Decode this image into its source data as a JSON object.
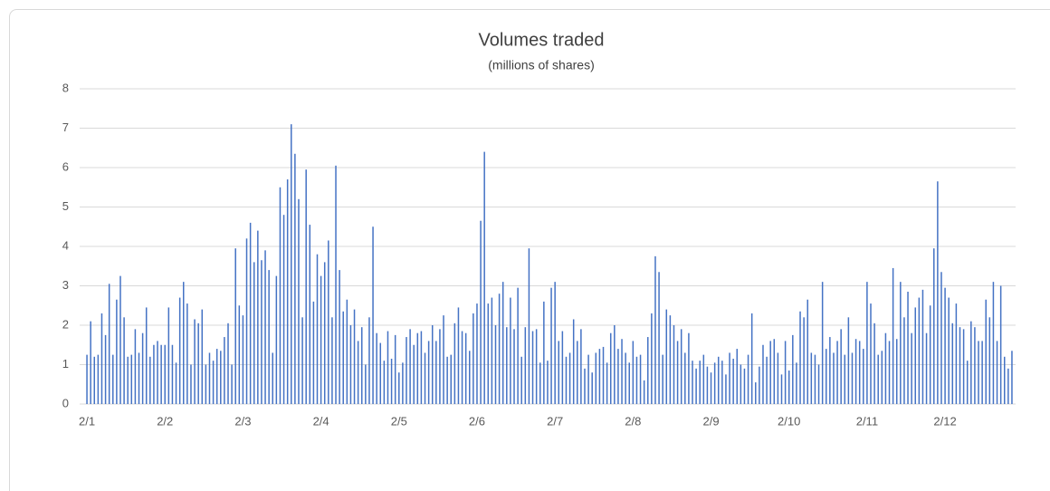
{
  "chart_data": {
    "type": "bar",
    "title": "Volumes traded",
    "subtitle": "(millions of shares)",
    "color": "#4472c4",
    "grid": true,
    "ylim": [
      0,
      8
    ],
    "yticks": [
      0,
      1,
      2,
      3,
      4,
      5,
      6,
      7,
      8
    ],
    "categories": [
      "2/1",
      null,
      null,
      null,
      null,
      null,
      null,
      null,
      null,
      null,
      null,
      null,
      null,
      null,
      null,
      null,
      null,
      null,
      null,
      null,
      null,
      "2/2",
      null,
      null,
      null,
      null,
      null,
      null,
      null,
      null,
      null,
      null,
      null,
      null,
      null,
      null,
      null,
      null,
      null,
      null,
      null,
      null,
      "2/3",
      null,
      null,
      null,
      null,
      null,
      null,
      null,
      null,
      null,
      null,
      null,
      null,
      null,
      null,
      null,
      null,
      null,
      null,
      null,
      null,
      "2/4",
      null,
      null,
      null,
      null,
      null,
      null,
      null,
      null,
      null,
      null,
      null,
      null,
      null,
      null,
      null,
      null,
      null,
      null,
      null,
      null,
      "2/5",
      null,
      null,
      null,
      null,
      null,
      null,
      null,
      null,
      null,
      null,
      null,
      null,
      null,
      null,
      null,
      null,
      null,
      null,
      null,
      null,
      "2/6",
      null,
      null,
      null,
      null,
      null,
      null,
      null,
      null,
      null,
      null,
      null,
      null,
      null,
      null,
      null,
      null,
      null,
      null,
      null,
      null,
      "2/7",
      null,
      null,
      null,
      null,
      null,
      null,
      null,
      null,
      null,
      null,
      null,
      null,
      null,
      null,
      null,
      null,
      null,
      null,
      null,
      null,
      "2/8",
      null,
      null,
      null,
      null,
      null,
      null,
      null,
      null,
      null,
      null,
      null,
      null,
      null,
      null,
      null,
      null,
      null,
      null,
      null,
      null,
      "2/9",
      null,
      null,
      null,
      null,
      null,
      null,
      null,
      null,
      null,
      null,
      null,
      null,
      null,
      null,
      null,
      null,
      null,
      null,
      null,
      null,
      "2/10",
      null,
      null,
      null,
      null,
      null,
      null,
      null,
      null,
      null,
      null,
      null,
      null,
      null,
      null,
      null,
      null,
      null,
      null,
      null,
      null,
      "2/11",
      null,
      null,
      null,
      null,
      null,
      null,
      null,
      null,
      null,
      null,
      null,
      null,
      null,
      null,
      null,
      null,
      null,
      null,
      null,
      null,
      "2/12",
      null,
      null,
      null,
      null,
      null,
      null,
      null,
      null,
      null,
      null,
      null,
      null,
      null,
      null,
      null,
      null,
      null,
      null
    ],
    "values": [
      1.25,
      2.1,
      1.2,
      1.25,
      2.3,
      1.75,
      3.05,
      1.25,
      2.65,
      3.25,
      2.2,
      1.2,
      1.25,
      1.9,
      1.3,
      1.8,
      2.45,
      1.2,
      1.5,
      1.6,
      1.5,
      1.5,
      2.45,
      1.5,
      1.05,
      2.7,
      3.1,
      2.55,
      1.0,
      2.15,
      2.05,
      2.4,
      1.0,
      1.3,
      1.1,
      1.4,
      1.35,
      1.7,
      2.05,
      1.0,
      3.95,
      2.5,
      2.25,
      4.2,
      4.6,
      3.6,
      4.4,
      3.65,
      3.9,
      3.4,
      1.3,
      3.25,
      5.5,
      4.8,
      5.7,
      7.1,
      6.35,
      5.2,
      2.2,
      5.95,
      4.55,
      2.6,
      3.8,
      3.25,
      3.6,
      4.15,
      2.2,
      6.05,
      3.4,
      2.35,
      2.65,
      2.0,
      2.4,
      1.6,
      1.95,
      1.0,
      2.2,
      4.5,
      1.8,
      1.55,
      1.1,
      1.85,
      1.15,
      1.75,
      0.8,
      1.05,
      1.7,
      1.9,
      1.5,
      1.8,
      1.85,
      1.3,
      1.6,
      2.0,
      1.6,
      1.9,
      2.25,
      1.2,
      1.25,
      2.05,
      2.45,
      1.85,
      1.8,
      1.35,
      2.3,
      2.55,
      4.65,
      6.4,
      2.55,
      2.7,
      2.0,
      2.8,
      3.1,
      1.95,
      2.7,
      1.9,
      2.95,
      1.2,
      1.95,
      3.95,
      1.85,
      1.9,
      1.05,
      2.6,
      1.1,
      2.95,
      3.1,
      1.6,
      1.85,
      1.2,
      1.3,
      2.15,
      1.6,
      1.9,
      0.9,
      1.25,
      0.8,
      1.3,
      1.4,
      1.45,
      1.05,
      1.8,
      2.0,
      1.4,
      1.65,
      1.3,
      1.05,
      1.6,
      1.2,
      1.25,
      0.6,
      1.7,
      2.3,
      3.75,
      3.35,
      1.25,
      2.4,
      2.25,
      2.0,
      1.6,
      1.9,
      1.3,
      1.8,
      1.1,
      0.9,
      1.1,
      1.25,
      0.95,
      0.8,
      1.05,
      1.2,
      1.1,
      0.75,
      1.3,
      1.15,
      1.4,
      1.0,
      0.9,
      1.25,
      2.3,
      0.55,
      0.95,
      1.5,
      1.2,
      1.6,
      1.65,
      1.3,
      0.75,
      1.6,
      0.85,
      1.75,
      1.05,
      2.35,
      2.2,
      2.65,
      1.3,
      1.25,
      1.0,
      3.1,
      1.4,
      1.7,
      1.3,
      1.6,
      1.9,
      1.25,
      2.2,
      1.3,
      1.65,
      1.6,
      1.4,
      3.1,
      2.55,
      2.05,
      1.25,
      1.35,
      1.8,
      1.6,
      3.45,
      1.65,
      3.1,
      2.2,
      2.85,
      1.8,
      2.45,
      2.7,
      2.9,
      1.8,
      2.5,
      3.95,
      5.65,
      3.35,
      2.95,
      2.7,
      2.05,
      2.55,
      1.95,
      1.9,
      1.1,
      2.1,
      1.95,
      1.6,
      1.6,
      2.65,
      2.2,
      3.1,
      1.6,
      3.0,
      1.2,
      0.9,
      1.35
    ]
  }
}
